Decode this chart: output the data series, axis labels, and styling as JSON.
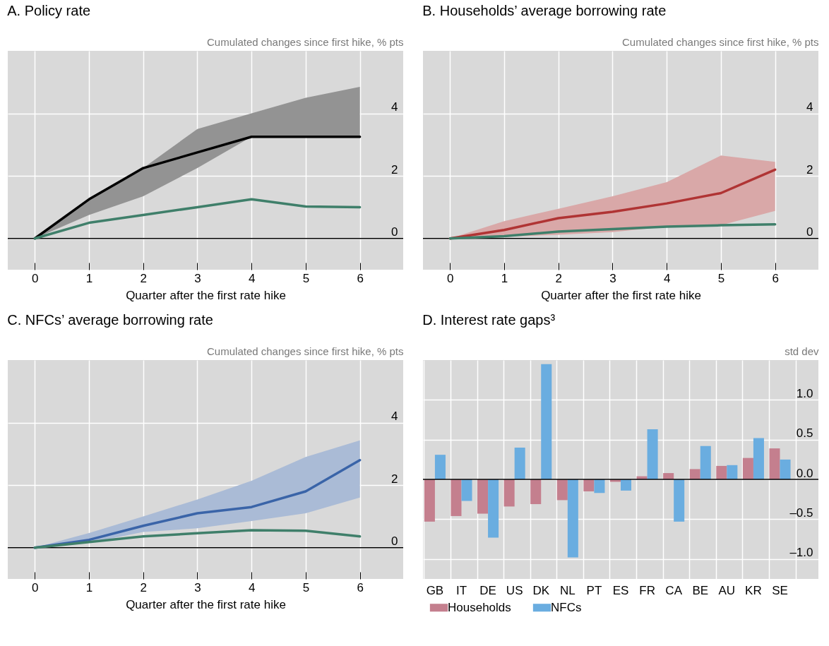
{
  "chart_data": [
    {
      "type": "line",
      "title": "A. Policy rate",
      "ylabel": "Cumulated changes since first hike, % pts",
      "xlabel": "Quarter after the first rate hike",
      "x": [
        0,
        1,
        2,
        3,
        4,
        5,
        6
      ],
      "xlim": [
        -0.5,
        6.8
      ],
      "xticks": [
        0,
        1,
        2,
        3,
        4,
        5,
        6
      ],
      "ylim": [
        -1,
        6
      ],
      "yticks": [
        0,
        2,
        4
      ],
      "grid": true,
      "series": [
        {
          "color": "#000000",
          "values": [
            0,
            1.25,
            2.25,
            2.75,
            3.25,
            3.25,
            3.25
          ],
          "lower": [
            0,
            0.75,
            1.35,
            2.25,
            3.25,
            3.25,
            3.25
          ],
          "upper": [
            0,
            1.25,
            2.25,
            3.5,
            4.0,
            4.5,
            4.85
          ]
        },
        {
          "color": "#3f7f6a",
          "values": [
            0,
            0.5,
            0.75,
            1.0,
            1.25,
            1.02,
            1.0
          ]
        }
      ],
      "ref_lines": [
        {
          "axis": "y",
          "value": 0,
          "color": "#000000"
        }
      ]
    },
    {
      "type": "line",
      "title": "B. Households’ average borrowing rate",
      "ylabel": "Cumulated changes since first hike, % pts",
      "xlabel": "Quarter after the first rate hike",
      "x": [
        0,
        1,
        2,
        3,
        4,
        5,
        6
      ],
      "xlim": [
        -0.5,
        6.8
      ],
      "xticks": [
        0,
        1,
        2,
        3,
        4,
        5,
        6
      ],
      "ylim": [
        -1,
        6
      ],
      "yticks": [
        0,
        2,
        4
      ],
      "grid": true,
      "series": [
        {
          "color": "#b03434",
          "values": [
            0,
            0.27,
            0.65,
            0.85,
            1.12,
            1.45,
            2.2
          ],
          "lower": [
            0,
            0.05,
            0.12,
            0.2,
            0.38,
            0.42,
            0.88
          ],
          "upper": [
            0,
            0.55,
            0.95,
            1.35,
            1.8,
            2.65,
            2.45
          ]
        },
        {
          "color": "#3f7f6a",
          "values": [
            0,
            0.07,
            0.22,
            0.3,
            0.38,
            0.42,
            0.45
          ]
        }
      ],
      "ref_lines": [
        {
          "axis": "y",
          "value": 0,
          "color": "#000000"
        }
      ]
    },
    {
      "type": "line",
      "title": "C. NFCs’ average borrowing rate",
      "ylabel": "Cumulated changes since first hike, % pts",
      "xlabel": "Quarter after the first rate hike",
      "x": [
        0,
        1,
        2,
        3,
        4,
        5,
        6
      ],
      "xlim": [
        -0.5,
        6.8
      ],
      "xticks": [
        0,
        1,
        2,
        3,
        4,
        5,
        6
      ],
      "ylim": [
        -1,
        6
      ],
      "yticks": [
        0,
        2,
        4
      ],
      "grid": true,
      "series": [
        {
          "color": "#3a64a8",
          "values": [
            0,
            0.25,
            0.7,
            1.1,
            1.3,
            1.8,
            2.8
          ],
          "lower": [
            0,
            0.15,
            0.5,
            0.62,
            0.85,
            1.1,
            1.6
          ],
          "upper": [
            0,
            0.47,
            1.0,
            1.54,
            2.14,
            2.9,
            3.43
          ]
        },
        {
          "color": "#3f7f6a",
          "values": [
            0,
            0.18,
            0.36,
            0.46,
            0.56,
            0.54,
            0.36
          ]
        }
      ],
      "ref_lines": [
        {
          "axis": "y",
          "value": 0,
          "color": "#000000"
        }
      ]
    },
    {
      "type": "bar",
      "title": "D. Interest rate gaps³",
      "ylabel": "std dev",
      "categories": [
        "GB",
        "IT",
        "DE",
        "US",
        "DK",
        "NL",
        "PT",
        "ES",
        "FR",
        "CA",
        "BE",
        "AU",
        "KR",
        "SE",
        null
      ],
      "ylim": [
        -1.25,
        1.5
      ],
      "yticks": [
        {
          "value": -1,
          "label": "–1.0"
        },
        {
          "value": -0.5,
          "label": "–0.5"
        },
        {
          "value": 0,
          "label": "0.0"
        },
        {
          "value": 0.5,
          "label": "0.5"
        },
        {
          "value": 1,
          "label": "1.0"
        }
      ],
      "grid": true,
      "legend": "bottom",
      "series": [
        {
          "name": "Households",
          "color": "#c47f8e",
          "values": [
            -0.53,
            -0.46,
            -0.43,
            -0.34,
            -0.31,
            -0.26,
            -0.15,
            -0.03,
            0.04,
            0.08,
            0.13,
            0.17,
            0.27,
            0.39,
            null
          ]
        },
        {
          "name": "NFCs",
          "color": "#6aade0",
          "values": [
            0.31,
            -0.27,
            -0.73,
            0.4,
            1.45,
            -0.98,
            -0.17,
            -0.14,
            0.63,
            -0.53,
            0.42,
            0.18,
            0.52,
            0.25,
            null
          ]
        }
      ],
      "ref_lines": [
        {
          "axis": "y",
          "value": 0,
          "color": "#000000"
        }
      ]
    }
  ]
}
